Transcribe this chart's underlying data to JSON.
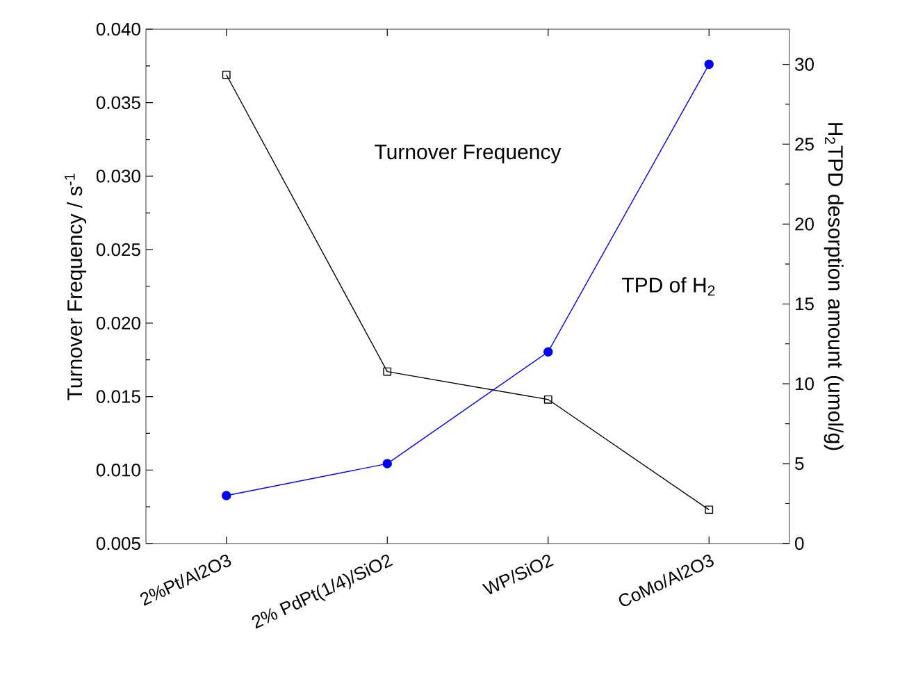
{
  "chart_data": {
    "type": "line",
    "categories": [
      "2%Pt/Al2O3",
      "2% PdPt(1/4)/SiO2",
      "WP/SiO2",
      "CoMo/Al2O3"
    ],
    "ylabel": "Turnover Frequency / s$^{-1}$",
    "y2label": "H$_{2}$TPD desorption amount (umol/g)",
    "ylim": [
      0.005,
      0.04
    ],
    "yticks": [
      0.005,
      {
        "value": 0.01,
        "label": "0.010"
      },
      0.015,
      {
        "value": 0.02,
        "label": "0.020"
      },
      0.025,
      {
        "value": 0.03,
        "label": "0.030"
      },
      0.035,
      {
        "value": 0.04,
        "label": "0.040"
      }
    ],
    "y2lim": [
      0,
      32.2
    ],
    "y2ticks": [
      0,
      5,
      10,
      15,
      20,
      25,
      30
    ],
    "series": [
      {
        "color": "#000000",
        "marker": "square",
        "values": [
          0.0369,
          0.0167,
          0.0148,
          0.0073
        ]
      },
      {
        "color": "#0000ff",
        "marker": "circle",
        "axis": "y2",
        "values": [
          3,
          5,
          12,
          30
        ]
      }
    ],
    "annotations": [
      "Turnover Frequency",
      "TPD of H$_{2}$"
    ],
    "grid": false
  }
}
